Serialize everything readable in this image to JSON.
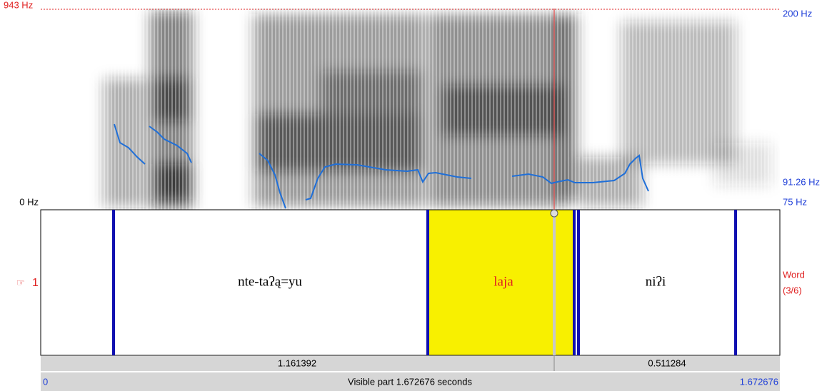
{
  "spectrogram": {
    "top_left_label": "943 Hz",
    "bottom_left_label": "0 Hz",
    "right_top_label": "200 Hz",
    "right_mid_label": "91.26 Hz",
    "right_bottom_label": "75 Hz"
  },
  "tier": {
    "number": "1",
    "name": "Word",
    "position": "(3/6)",
    "intervals": [
      "nte-taʔą=yu",
      "laja",
      "niʔi"
    ]
  },
  "durations": {
    "left": "1.161392",
    "right": "0.511284"
  },
  "time_axis": {
    "start": "0",
    "caption": "Visible part 1.672676 seconds",
    "end": "1.672676"
  }
}
